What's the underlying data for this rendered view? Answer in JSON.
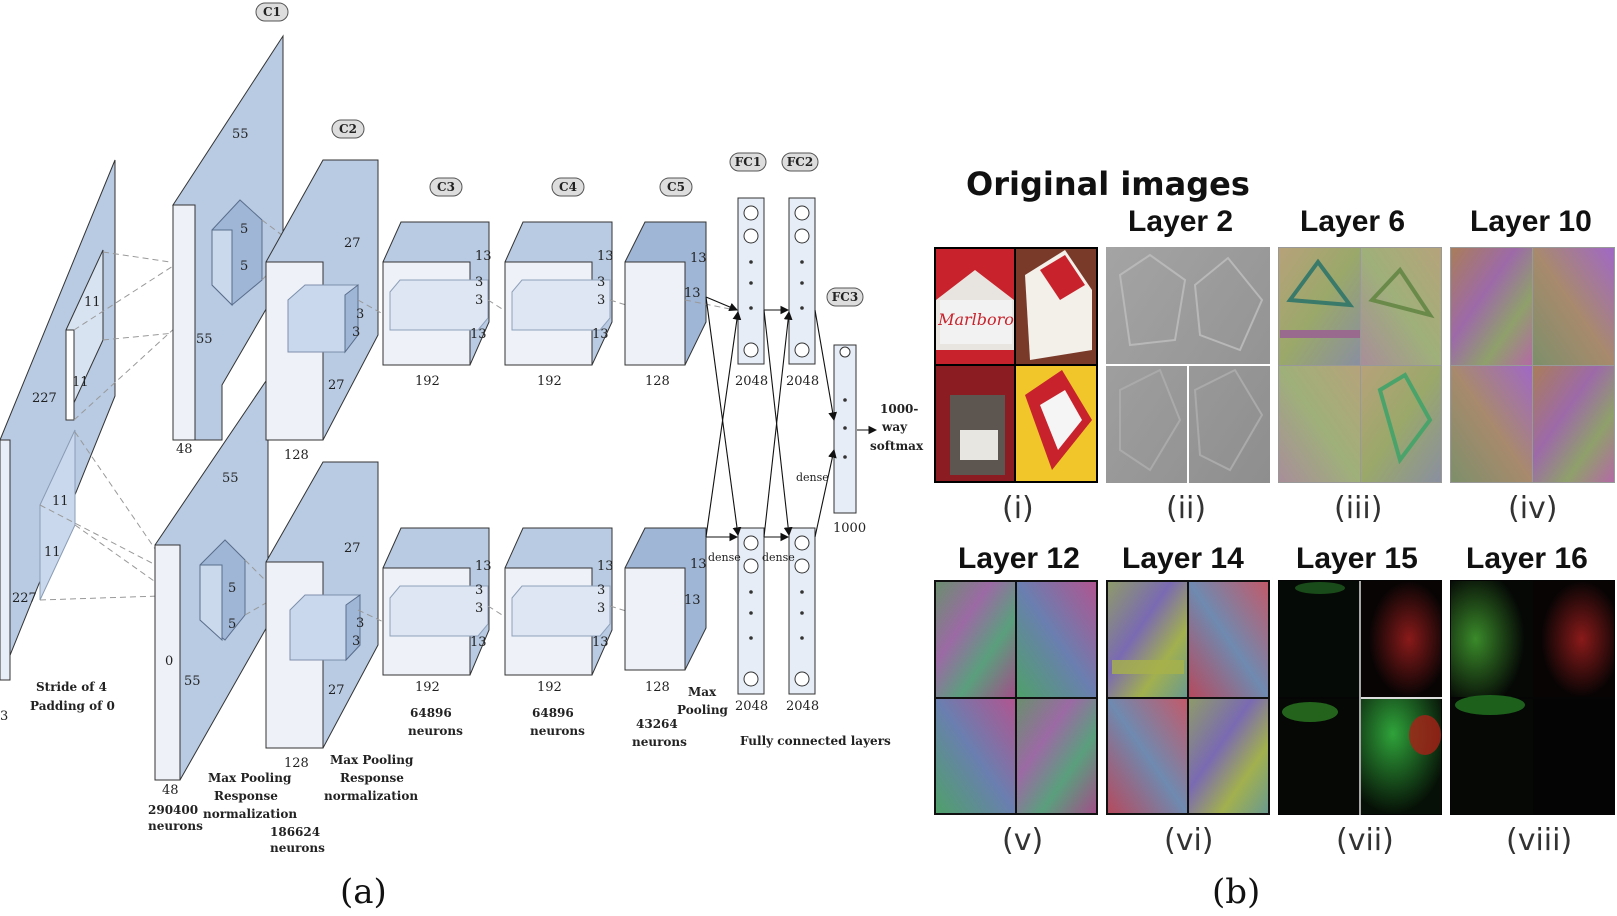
{
  "panel_a": {
    "caption": "(a)",
    "input": {
      "dims": [
        "227",
        "227",
        "3"
      ],
      "stride": "Stride of 4",
      "padding": "Padding of 0",
      "kernel": [
        "11",
        "11",
        "11",
        "11"
      ]
    },
    "c1": {
      "label": "C1",
      "dims": [
        "55",
        "55",
        "48",
        "55",
        "55",
        "0",
        "48"
      ],
      "kernel": [
        "5",
        "5",
        "5",
        "5"
      ],
      "neurons": "290400",
      "neurons_unit": "neurons"
    },
    "c2": {
      "label": "C2",
      "dims": [
        "27",
        "27",
        "128",
        "27",
        "27",
        "128"
      ],
      "kernel": [
        "3",
        "3",
        "3",
        "3"
      ],
      "neurons": "186624",
      "neurons_unit": "neurons"
    },
    "c3": {
      "label": "C3",
      "dims": [
        "13",
        "3",
        "3",
        "13",
        "192",
        "13",
        "3",
        "3",
        "13",
        "192"
      ],
      "neurons": "64896",
      "neurons_unit": "neurons"
    },
    "c4": {
      "label": "C4",
      "dims": [
        "13",
        "3",
        "3",
        "13",
        "192",
        "13",
        "3",
        "3",
        "13",
        "192"
      ],
      "neurons": "64896",
      "neurons_unit": "neurons"
    },
    "c5": {
      "label": "C5",
      "dims": [
        "13",
        "13",
        "128",
        "13",
        "13",
        "128"
      ],
      "neurons": "43264",
      "neurons_unit": "neurons"
    },
    "pool_top": [
      "Max Pooling",
      "Response",
      "normalization"
    ],
    "pool_bottom": [
      "Max Pooling",
      "Response",
      "normalization"
    ],
    "pool_c5": [
      "Max",
      "Pooling"
    ],
    "fc1": {
      "label": "FC1",
      "size": "2048"
    },
    "fc2": {
      "label": "FC2",
      "size": "2048"
    },
    "fc3": {
      "label": "FC3",
      "size": "1000"
    },
    "dense": "dense",
    "output": [
      "1000-",
      "way",
      "softmax"
    ],
    "fc_caption": "Fully connected layers"
  },
  "panel_b": {
    "caption": "(b)",
    "images": [
      {
        "title": "Original images",
        "roman": "(i)"
      },
      {
        "title": "Layer 2",
        "roman": "(ii)"
      },
      {
        "title": "Layer 6",
        "roman": "(iii)"
      },
      {
        "title": "Layer 10",
        "roman": "(iv)"
      },
      {
        "title": "Layer 12",
        "roman": "(v)"
      },
      {
        "title": "Layer 14",
        "roman": "(vi)"
      },
      {
        "title": "Layer 15",
        "roman": "(vii)"
      },
      {
        "title": "Layer 16",
        "roman": "(viii)"
      }
    ],
    "logo_text": "Marlboro",
    "colors": {
      "pack_red": "#c8232c",
      "gray": "#9a9a9a",
      "dark": "#050505"
    }
  }
}
